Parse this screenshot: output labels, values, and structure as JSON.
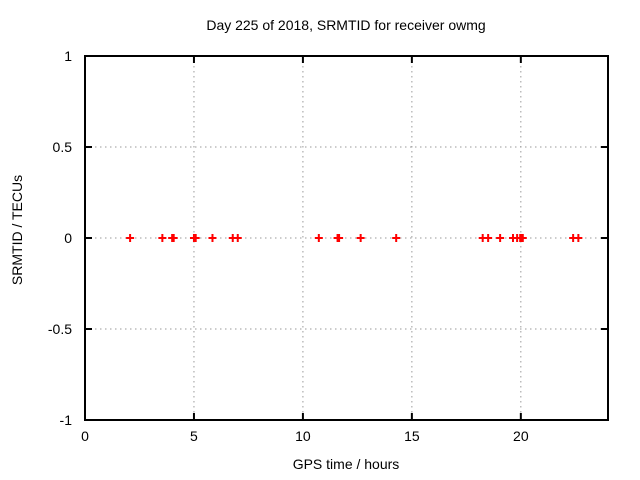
{
  "window": {
    "title": "Day 225 of 2018, SRMTID for receiver owmg"
  },
  "chart_data": {
    "type": "scatter",
    "title": "Day 225 of 2018, SRMTID for receiver owmg",
    "xlabel": "GPS time / hours",
    "ylabel": "SRMTID / TECUs",
    "xlim": [
      0,
      24
    ],
    "ylim": [
      -1,
      1
    ],
    "xticks": [
      0,
      5,
      10,
      15,
      20
    ],
    "xtick_labels": [
      "0",
      "5",
      "10",
      "15",
      "20"
    ],
    "yticks": [
      -1,
      -0.5,
      0,
      0.5,
      1
    ],
    "ytick_labels": [
      "-1",
      "-0.5",
      "0",
      "0.5",
      "1"
    ],
    "grid": "dotted",
    "legend": "none",
    "marker": "plus",
    "series": [
      {
        "name": "SRMTID",
        "x": [
          2.07,
          3.55,
          4.0,
          4.07,
          5.0,
          5.08,
          5.85,
          6.78,
          7.01,
          10.73,
          11.59,
          11.66,
          12.65,
          14.28,
          18.25,
          18.5,
          19.05,
          19.64,
          19.83,
          19.97,
          20.03,
          20.09,
          22.4,
          22.64
        ],
        "y": [
          0,
          0,
          0,
          0,
          0,
          0,
          0,
          0,
          0,
          0,
          0,
          0,
          0,
          0,
          0,
          0,
          0,
          0,
          0,
          0,
          0,
          0,
          0,
          0
        ]
      }
    ]
  },
  "colors": {
    "marker": "#ff0000",
    "frame": "#000000",
    "grid": "#9a9a9a",
    "text": "#000000",
    "background": "#ffffff"
  }
}
